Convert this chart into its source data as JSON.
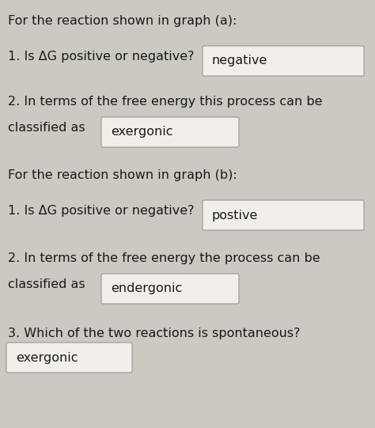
{
  "background_color": "#ccc8c2",
  "text_color": "#1a1a1a",
  "box_facecolor": "#f2eeea",
  "box_edgecolor": "#999999",
  "font_size": 11.5,
  "fig_w": 4.74,
  "fig_h": 5.41,
  "dpi": 100,
  "elements": [
    {
      "type": "text",
      "xp": 10,
      "yp": 510,
      "text": "For the reaction shown in graph (a):"
    },
    {
      "type": "text",
      "xp": 10,
      "yp": 465,
      "text": "1. Is ΔG positive or negative?"
    },
    {
      "type": "box",
      "xp": 258,
      "yp": 447,
      "wp": 200,
      "hp": 34,
      "label": "negative"
    },
    {
      "type": "text",
      "xp": 10,
      "yp": 408,
      "text": "2. In terms of the free energy this process can be"
    },
    {
      "type": "text",
      "xp": 10,
      "yp": 375,
      "text": "classified as"
    },
    {
      "type": "box",
      "xp": 130,
      "yp": 357,
      "wp": 170,
      "hp": 34,
      "label": "exergonic"
    },
    {
      "type": "text",
      "xp": 10,
      "yp": 315,
      "text": "For the reaction shown in graph (b):"
    },
    {
      "type": "text",
      "xp": 10,
      "yp": 270,
      "text": "1. Is ΔG positive or negative?"
    },
    {
      "type": "box",
      "xp": 258,
      "yp": 252,
      "wp": 200,
      "hp": 34,
      "label": "postive"
    },
    {
      "type": "text",
      "xp": 10,
      "yp": 210,
      "text": "2. In terms of the free energy the process can be"
    },
    {
      "type": "text",
      "xp": 10,
      "yp": 177,
      "text": "classified as"
    },
    {
      "type": "box",
      "xp": 130,
      "yp": 159,
      "wp": 170,
      "hp": 34,
      "label": "endergonic"
    },
    {
      "type": "text",
      "xp": 10,
      "yp": 115,
      "text": "3. Which of the two reactions is spontaneous?"
    },
    {
      "type": "box",
      "xp": 10,
      "yp": 72,
      "wp": 155,
      "hp": 34,
      "label": "exergonic"
    }
  ]
}
